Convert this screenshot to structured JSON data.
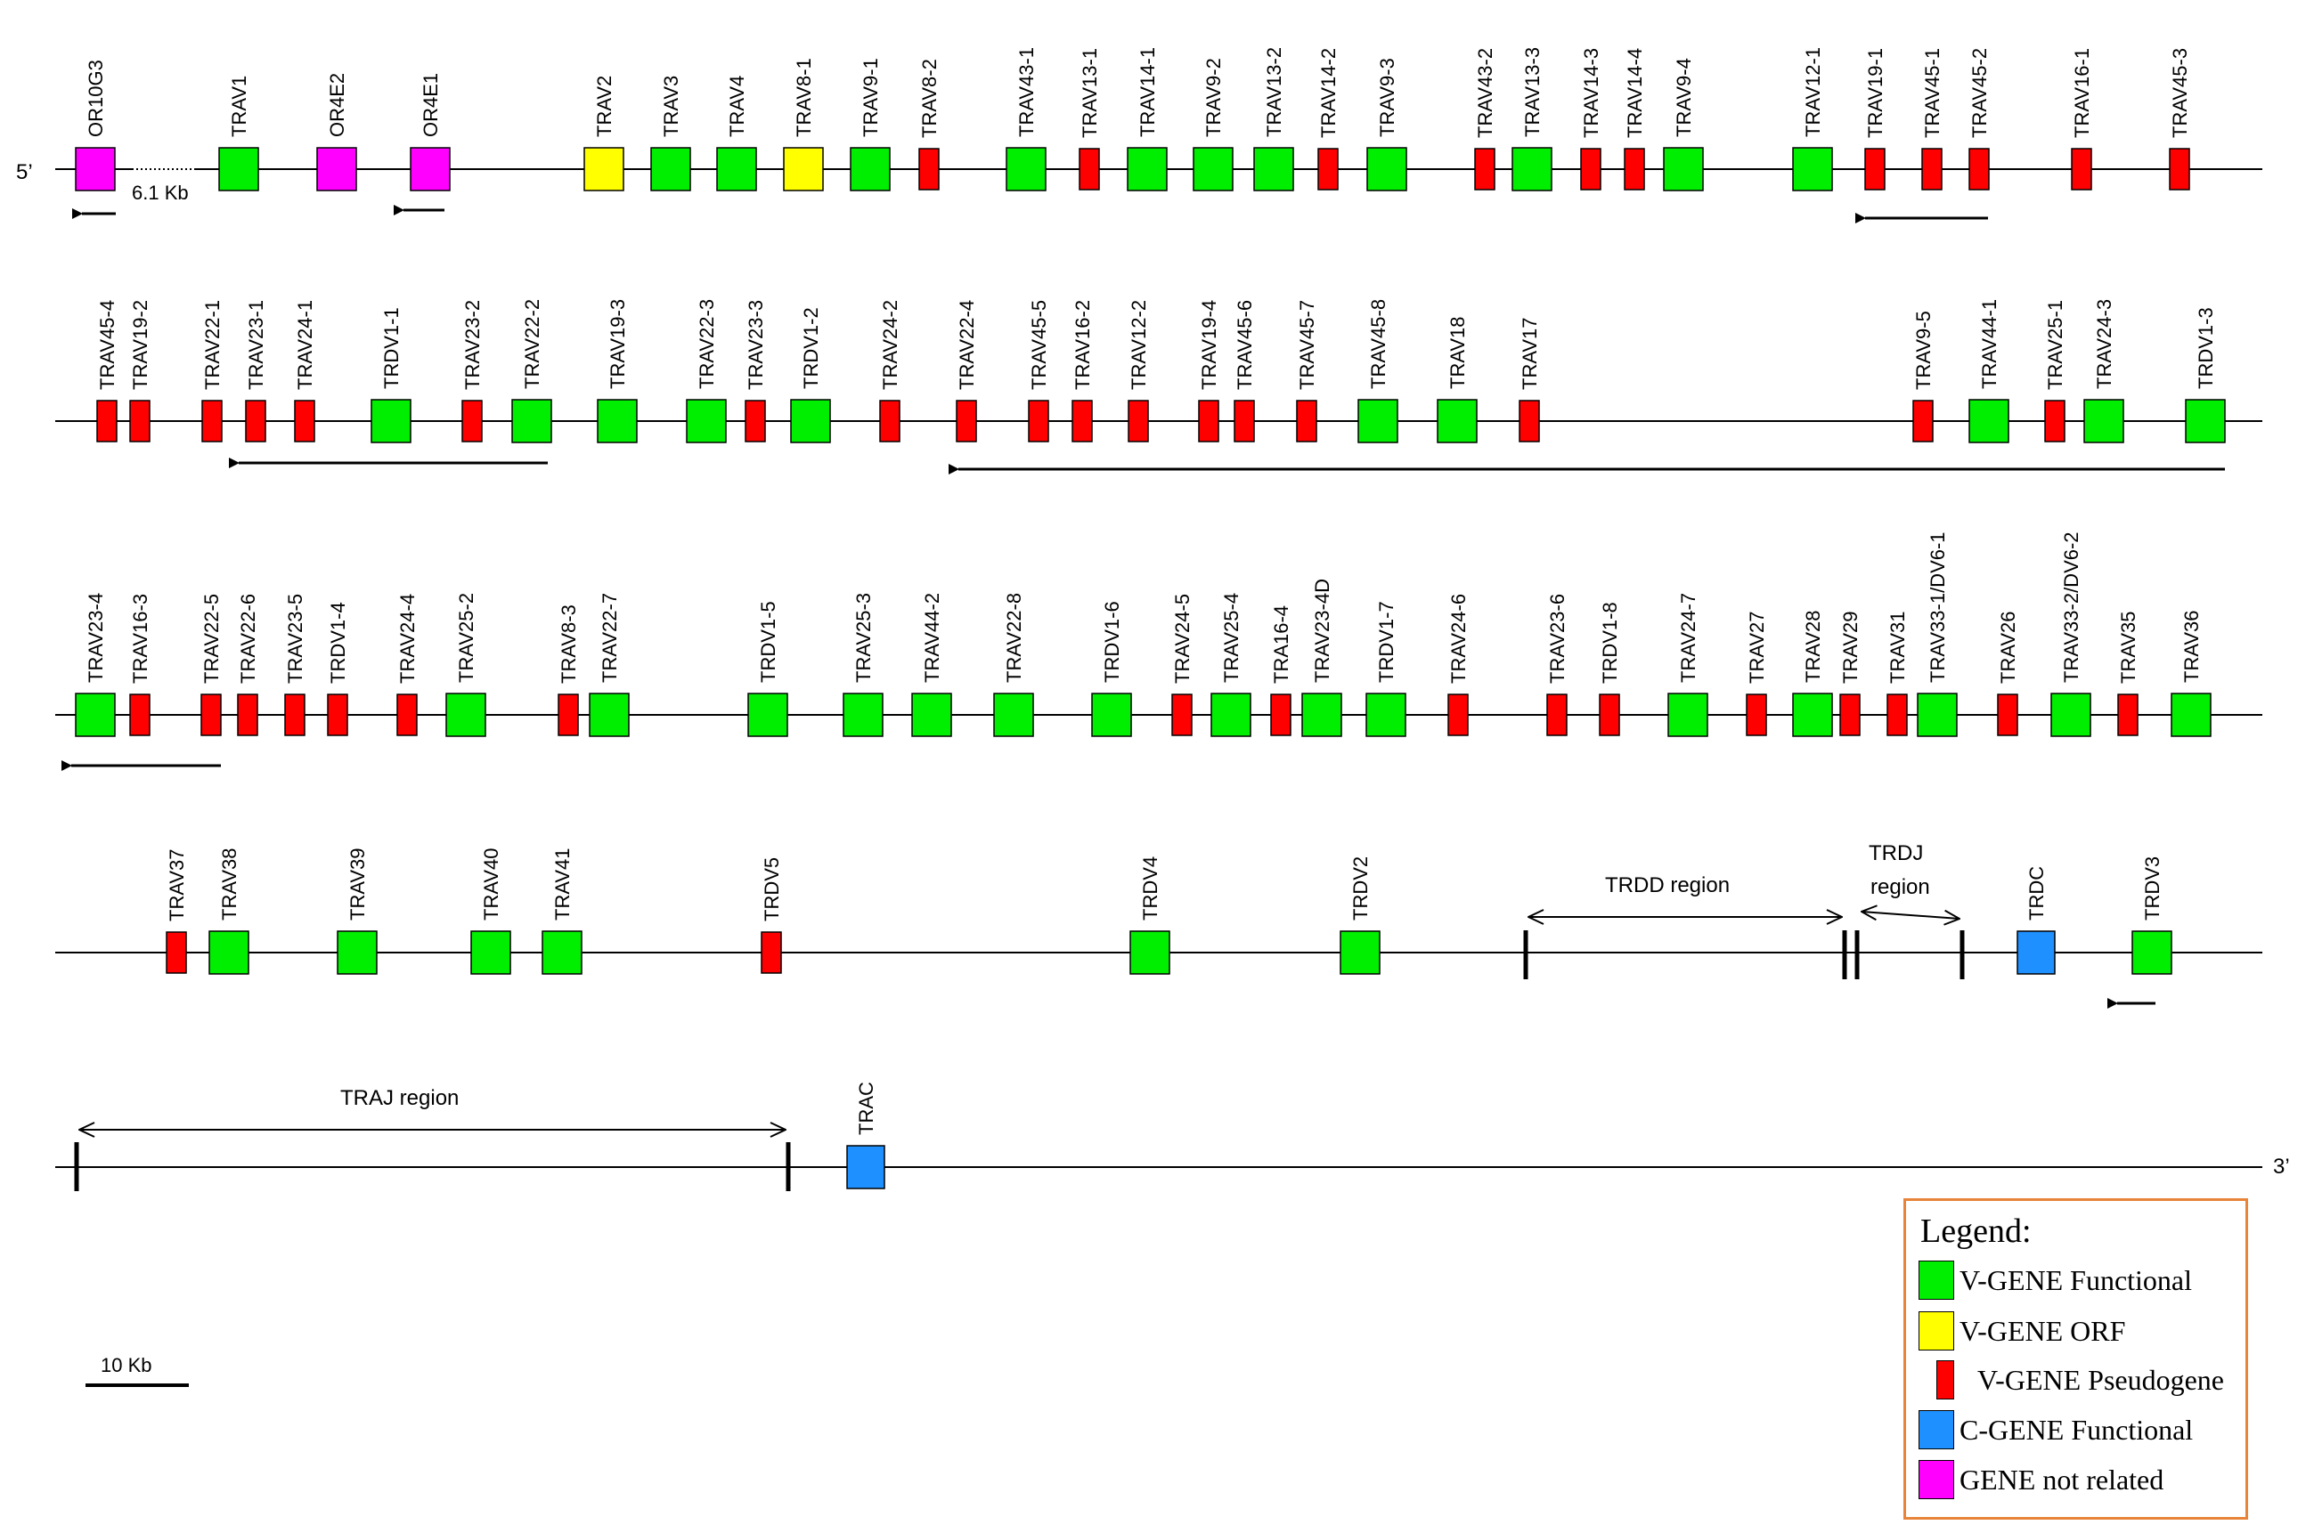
{
  "colors": {
    "functional": "#00ee00",
    "orf": "#ffff00",
    "pseudogene": "#ff0000",
    "c_gene": "#1e90ff",
    "not_related": "#ff00ff",
    "legend_border": "#e8843a"
  },
  "labels": {
    "five_prime": "5’",
    "three_prime": "3’",
    "gap": "6.1 Kb",
    "scale": "10 Kb"
  },
  "regions": {
    "trdd": "TRDD region",
    "trdj_line1": "TRDJ",
    "trdj_line2": "region",
    "traj": "TRAJ region"
  },
  "legend": {
    "title": "Legend:",
    "items": [
      {
        "label": "V-GENE Functional",
        "type": "functional"
      },
      {
        "label": "V-GENE ORF",
        "type": "orf"
      },
      {
        "label": "V-GENE Pseudogene",
        "type": "pseudogene"
      },
      {
        "label": "C-GENE Functional",
        "type": "c_gene"
      },
      {
        "label": "GENE not related",
        "type": "not_related"
      }
    ]
  },
  "genes": [
    [
      {
        "name": "OR10G3",
        "type": "not_related"
      },
      {
        "name": "TRAV1",
        "type": "functional"
      },
      {
        "name": "OR4E2",
        "type": "not_related"
      },
      {
        "name": "OR4E1",
        "type": "not_related"
      },
      {
        "name": "TRAV2",
        "type": "orf"
      },
      {
        "name": "TRAV3",
        "type": "functional"
      },
      {
        "name": "TRAV4",
        "type": "functional"
      },
      {
        "name": "TRAV8-1",
        "type": "orf"
      },
      {
        "name": "TRAV9-1",
        "type": "functional"
      },
      {
        "name": "TRAV8-2",
        "type": "pseudogene"
      },
      {
        "name": "TRAV43-1",
        "type": "functional"
      },
      {
        "name": "TRAV13-1",
        "type": "pseudogene"
      },
      {
        "name": "TRAV14-1",
        "type": "functional"
      },
      {
        "name": "TRAV9-2",
        "type": "functional"
      },
      {
        "name": "TRAV13-2",
        "type": "functional"
      },
      {
        "name": "TRAV14-2",
        "type": "pseudogene"
      },
      {
        "name": "TRAV9-3",
        "type": "functional"
      },
      {
        "name": "TRAV43-2",
        "type": "pseudogene"
      },
      {
        "name": "TRAV13-3",
        "type": "functional"
      },
      {
        "name": "TRAV14-3",
        "type": "pseudogene"
      },
      {
        "name": "TRAV14-4",
        "type": "pseudogene"
      },
      {
        "name": "TRAV9-4",
        "type": "functional"
      },
      {
        "name": "TRAV12-1",
        "type": "functional"
      },
      {
        "name": "TRAV19-1",
        "type": "pseudogene"
      },
      {
        "name": "TRAV45-1",
        "type": "pseudogene"
      },
      {
        "name": "TRAV45-2",
        "type": "pseudogene"
      },
      {
        "name": "TRAV16-1",
        "type": "pseudogene"
      },
      {
        "name": "TRAV45-3",
        "type": "pseudogene"
      }
    ],
    [
      {
        "name": "TRAV45-4",
        "type": "pseudogene"
      },
      {
        "name": "TRAV19-2",
        "type": "pseudogene"
      },
      {
        "name": "TRAV22-1",
        "type": "pseudogene"
      },
      {
        "name": "TRAV23-1",
        "type": "pseudogene"
      },
      {
        "name": "TRAV24-1",
        "type": "pseudogene"
      },
      {
        "name": "TRDV1-1",
        "type": "functional"
      },
      {
        "name": "TRAV23-2",
        "type": "pseudogene"
      },
      {
        "name": "TRAV22-2",
        "type": "functional"
      },
      {
        "name": "TRAV19-3",
        "type": "functional"
      },
      {
        "name": "TRAV22-3",
        "type": "functional"
      },
      {
        "name": "TRAV23-3",
        "type": "pseudogene"
      },
      {
        "name": "TRDV1-2",
        "type": "functional"
      },
      {
        "name": "TRAV24-2",
        "type": "pseudogene"
      },
      {
        "name": "TRAV22-4",
        "type": "pseudogene"
      },
      {
        "name": "TRAV45-5",
        "type": "pseudogene"
      },
      {
        "name": "TRAV16-2",
        "type": "pseudogene"
      },
      {
        "name": "TRAV12-2",
        "type": "pseudogene"
      },
      {
        "name": "TRAV19-4",
        "type": "pseudogene"
      },
      {
        "name": "TRAV45-6",
        "type": "pseudogene"
      },
      {
        "name": "TRAV45-7",
        "type": "pseudogene"
      },
      {
        "name": "TRAV45-8",
        "type": "functional"
      },
      {
        "name": "TRAV18",
        "type": "functional"
      },
      {
        "name": "TRAV17",
        "type": "pseudogene"
      },
      {
        "name": "TRAV9-5",
        "type": "pseudogene"
      },
      {
        "name": "TRAV44-1",
        "type": "functional"
      },
      {
        "name": "TRAV25-1",
        "type": "pseudogene"
      },
      {
        "name": "TRAV24-3",
        "type": "functional"
      },
      {
        "name": "TRDV1-3",
        "type": "functional"
      }
    ],
    [
      {
        "name": "TRAV23-4",
        "type": "functional"
      },
      {
        "name": "TRAV16-3",
        "type": "pseudogene"
      },
      {
        "name": "TRAV22-5",
        "type": "pseudogene"
      },
      {
        "name": "TRAV22-6",
        "type": "pseudogene"
      },
      {
        "name": "TRAV23-5",
        "type": "pseudogene"
      },
      {
        "name": "TRDV1-4",
        "type": "pseudogene"
      },
      {
        "name": "TRAV24-4",
        "type": "pseudogene"
      },
      {
        "name": "TRAV25-2",
        "type": "functional"
      },
      {
        "name": "TRAV8-3",
        "type": "pseudogene"
      },
      {
        "name": "TRAV22-7",
        "type": "functional"
      },
      {
        "name": "TRDV1-5",
        "type": "functional"
      },
      {
        "name": "TRAV25-3",
        "type": "functional"
      },
      {
        "name": "TRAV44-2",
        "type": "functional"
      },
      {
        "name": "TRAV22-8",
        "type": "functional"
      },
      {
        "name": "TRDV1-6",
        "type": "functional"
      },
      {
        "name": "TRAV24-5",
        "type": "pseudogene"
      },
      {
        "name": "TRAV25-4",
        "type": "functional"
      },
      {
        "name": "TRA16-4",
        "type": "pseudogene"
      },
      {
        "name": "TRAV23-4D",
        "type": "functional"
      },
      {
        "name": "TRDV1-7",
        "type": "functional"
      },
      {
        "name": "TRAV24-6",
        "type": "pseudogene"
      },
      {
        "name": "TRAV23-6",
        "type": "pseudogene"
      },
      {
        "name": "TRDV1-8",
        "type": "pseudogene"
      },
      {
        "name": "TRAV24-7",
        "type": "functional"
      },
      {
        "name": "TRAV27",
        "type": "pseudogene"
      },
      {
        "name": "TRAV28",
        "type": "functional"
      },
      {
        "name": "TRAV29",
        "type": "pseudogene"
      },
      {
        "name": "TRAV31",
        "type": "pseudogene"
      },
      {
        "name": "TRAV33-1/DV6-1",
        "type": "functional"
      },
      {
        "name": "TRAV26",
        "type": "pseudogene"
      },
      {
        "name": "TRAV33-2/DV6-2",
        "type": "functional"
      },
      {
        "name": "TRAV35",
        "type": "pseudogene"
      },
      {
        "name": "TRAV36",
        "type": "functional"
      }
    ],
    [
      {
        "name": "TRAV37",
        "type": "pseudogene"
      },
      {
        "name": "TRAV38",
        "type": "functional"
      },
      {
        "name": "TRAV39",
        "type": "functional"
      },
      {
        "name": "TRAV40",
        "type": "functional"
      },
      {
        "name": "TRAV41",
        "type": "functional"
      },
      {
        "name": "TRDV5",
        "type": "pseudogene"
      },
      {
        "name": "TRDV4",
        "type": "functional"
      },
      {
        "name": "TRDV2",
        "type": "functional"
      },
      {
        "name": "TRDC",
        "type": "c_gene"
      },
      {
        "name": "TRDV3",
        "type": "functional"
      }
    ],
    [
      {
        "name": "TRAC",
        "type": "c_gene"
      }
    ]
  ]
}
